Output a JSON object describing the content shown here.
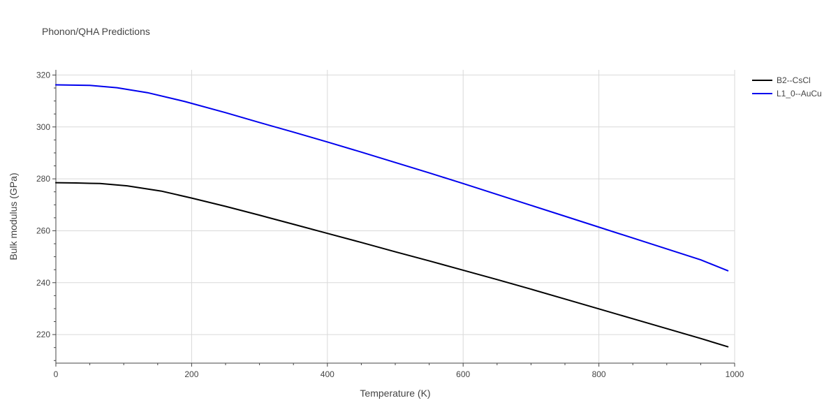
{
  "chart_data": {
    "type": "line",
    "title": "Phonon/QHA Predictions",
    "xlabel": "Temperature (K)",
    "ylabel": "Bulk modulus (GPa)",
    "xlim": [
      0,
      1000
    ],
    "ylim": [
      209,
      322
    ],
    "xticks": [
      0,
      200,
      400,
      600,
      800,
      1000
    ],
    "yticks": [
      220,
      240,
      260,
      280,
      300,
      320
    ],
    "xtick_labels": [
      "0",
      "200",
      "400",
      "600",
      "800",
      "1000"
    ],
    "ytick_labels": [
      "220",
      "240",
      "260",
      "280",
      "300",
      "320"
    ],
    "grid": true,
    "legend_position": "top-right",
    "series": [
      {
        "name": "B2--CsCl",
        "color": "#000000",
        "x": [
          0,
          30,
          65,
          105,
          155,
          200,
          250,
          300,
          350,
          400,
          450,
          500,
          550,
          600,
          650,
          700,
          750,
          800,
          850,
          900,
          950,
          990
        ],
        "y": [
          278.5,
          278.4,
          278.2,
          277.3,
          275.3,
          272.6,
          269.4,
          266.0,
          262.5,
          259.0,
          255.5,
          251.9,
          248.4,
          244.8,
          241.2,
          237.5,
          233.7,
          229.9,
          226.1,
          222.3,
          218.5,
          215.3
        ]
      },
      {
        "name": "L1_0--AuCu",
        "color": "#0000ee",
        "x": [
          0,
          50,
          90,
          135,
          190,
          250,
          300,
          350,
          400,
          450,
          500,
          550,
          600,
          650,
          700,
          750,
          800,
          850,
          900,
          950,
          990
        ],
        "y": [
          316.2,
          316.0,
          315.1,
          313.2,
          309.8,
          305.5,
          301.7,
          298.0,
          294.2,
          290.3,
          286.3,
          282.3,
          278.2,
          274.0,
          269.8,
          265.6,
          261.4,
          257.2,
          253.0,
          248.8,
          244.6
        ]
      }
    ]
  }
}
